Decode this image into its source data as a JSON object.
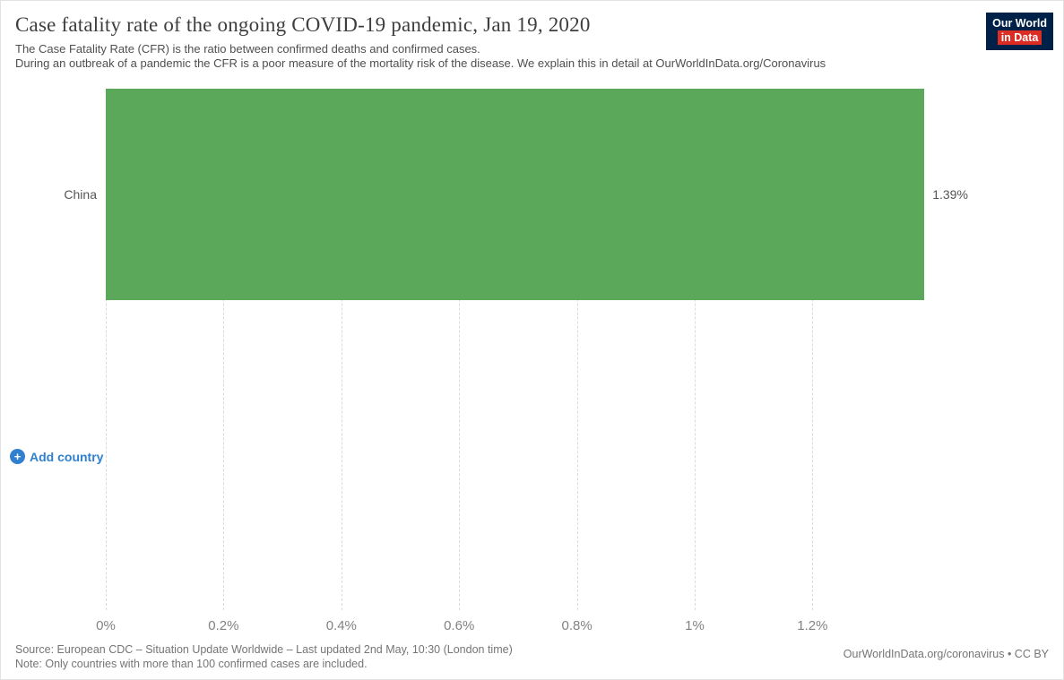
{
  "header": {
    "title": "Case fatality rate of the ongoing COVID-19 pandemic, Jan 19, 2020",
    "subtitle_line1": "The Case Fatality Rate (CFR) is the ratio between confirmed deaths and confirmed cases.",
    "subtitle_line2": "During an outbreak of a pandemic the CFR is a poor measure of the mortality risk of the disease. We explain this in detail at OurWorldInData.org/Coronavirus",
    "logo": {
      "line1": "Our World",
      "line2": "in Data"
    }
  },
  "chart_data": {
    "type": "bar",
    "orientation": "horizontal",
    "categories": [
      "China"
    ],
    "values": [
      1.39
    ],
    "value_labels": [
      "1.39%"
    ],
    "xlim": [
      0,
      1.39
    ],
    "x_ticks": [
      {
        "label": "0%",
        "value": 0
      },
      {
        "label": "0.2%",
        "value": 0.2
      },
      {
        "label": "0.4%",
        "value": 0.4
      },
      {
        "label": "0.6%",
        "value": 0.6
      },
      {
        "label": "0.8%",
        "value": 0.8
      },
      {
        "label": "1%",
        "value": 1.0
      },
      {
        "label": "1.2%",
        "value": 1.2
      }
    ],
    "grid": "dashed-vertical",
    "legend": "none"
  },
  "controls": {
    "add_country_label": "Add country",
    "plus_glyph": "+"
  },
  "footer": {
    "source": "Source: European CDC – Situation Update Worldwide – Last updated 2nd May, 10:30 (London time)",
    "note": "Note: Only countries with more than 100 confirmed cases are included.",
    "attribution": "OurWorldInData.org/coronavirus • CC BY"
  },
  "colors": {
    "bar": "#5ba85b",
    "accent_blue": "#3080cf",
    "logo_navy": "#002147",
    "logo_red": "#dc2d25"
  }
}
